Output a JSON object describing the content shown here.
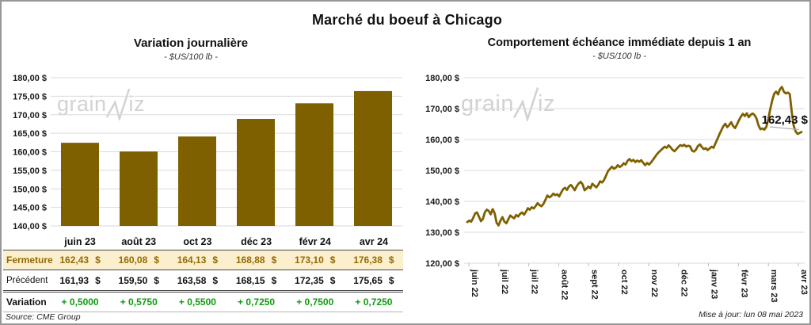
{
  "header": {
    "title": "Marché du boeuf à Chicago"
  },
  "left_chart": {
    "title": "Variation journalière",
    "subtitle": "- $US/100 lb -"
  },
  "right_chart": {
    "title": "Comportement échéance immédiate depuis 1 an",
    "subtitle": "- $US/100 lb -",
    "annotation_label": "162,43 $"
  },
  "watermark": {
    "prefix": "grain",
    "suffix": "iz"
  },
  "table": {
    "columns": [
      "juin 23",
      "août 23",
      "oct 23",
      "déc 23",
      "févr 24",
      "avr 24"
    ],
    "rows": [
      {
        "label": "Fermeture",
        "style": "fermeture",
        "unit": "$",
        "values": [
          "162,43",
          "160,08",
          "164,13",
          "168,88",
          "173,10",
          "176,38"
        ]
      },
      {
        "label": "Précédent",
        "style": "precedent",
        "unit": "$",
        "values": [
          "161,93",
          "159,50",
          "163,58",
          "168,15",
          "172,35",
          "175,65"
        ]
      },
      {
        "label": "Variation",
        "style": "variation",
        "unit": "",
        "values": [
          "+ 0,5000",
          "+ 0,5750",
          "+ 0,5500",
          "+ 0,7250",
          "+ 0,7500",
          "+ 0,7250"
        ]
      }
    ]
  },
  "footer": {
    "source": "Source: CME Group",
    "updated": "Mise à jour: lun 08 mai 2023"
  },
  "colors": {
    "gold": "#7f6000",
    "gold_text": "#946a00",
    "cream_bg": "#fbefcd",
    "green": "#0e9b0e",
    "grid": "#d9d9d9",
    "watermark": "#d2d2d2"
  },
  "chart_data": [
    {
      "type": "bar",
      "title": "Variation journalière",
      "subtitle": "- $US/100 lb -",
      "categories": [
        "juin 23",
        "août 23",
        "oct 23",
        "déc 23",
        "févr 24",
        "avr 24"
      ],
      "values": [
        162.43,
        160.08,
        164.13,
        168.88,
        173.1,
        176.38
      ],
      "ylabel": "$US/100 lb",
      "ylim": [
        140,
        180
      ],
      "ytick_step": 5,
      "grid": true,
      "bar_color": "#7f6000"
    },
    {
      "type": "line",
      "title": "Comportement échéance immédiate depuis 1 an",
      "subtitle": "- $US/100 lb -",
      "x_tick_labels": [
        "juin 22",
        "juil 22",
        "juil 22",
        "août 22",
        "sept 22",
        "oct 22",
        "nov 22",
        "déc 22",
        "janv 23",
        "févr 23",
        "mars 23",
        "avr 23"
      ],
      "ylabel": "$US/100 lb",
      "ylim": [
        120,
        180
      ],
      "ytick_step": 10,
      "grid": true,
      "line_color": "#7f6000",
      "annotation": {
        "text": "162,43 $",
        "value": 162.43,
        "at": "last-point"
      },
      "values": [
        133.3,
        133.8,
        133.4,
        134.6,
        136.1,
        136.4,
        135.0,
        133.6,
        134.3,
        136.5,
        137.3,
        136.9,
        135.8,
        137.5,
        136.2,
        133.1,
        132.2,
        133.8,
        134.9,
        133.4,
        132.9,
        134.2,
        135.4,
        134.9,
        134.5,
        135.6,
        135.1,
        135.9,
        136.4,
        135.7,
        136.6,
        137.8,
        137.3,
        138.1,
        137.7,
        138.5,
        139.4,
        138.8,
        138.4,
        139.2,
        140.5,
        141.9,
        141.3,
        141.7,
        142.5,
        142.0,
        142.3,
        141.6,
        142.8,
        143.9,
        144.4,
        143.7,
        144.8,
        145.3,
        144.5,
        143.6,
        144.9,
        145.8,
        146.3,
        145.5,
        143.6,
        144.1,
        144.8,
        144.2,
        145.7,
        145.1,
        144.5,
        145.3,
        146.5,
        146.1,
        146.9,
        148.3,
        149.8,
        150.5,
        151.2,
        150.6,
        150.9,
        151.7,
        151.1,
        151.5,
        152.3,
        151.9,
        153.1,
        153.7,
        153.0,
        153.4,
        152.7,
        153.2,
        152.8,
        153.3,
        152.5,
        151.7,
        152.4,
        151.9,
        152.6,
        153.4,
        154.3,
        155.2,
        155.9,
        156.5,
        157.1,
        157.7,
        157.3,
        158.1,
        157.5,
        156.7,
        156.2,
        156.9,
        157.6,
        158.2,
        157.9,
        158.3,
        157.7,
        158.0,
        157.8,
        156.4,
        156.1,
        156.7,
        157.9,
        158.4,
        157.6,
        156.9,
        157.2,
        156.6,
        157.1,
        157.7,
        157.3,
        158.8,
        160.2,
        161.7,
        163.0,
        164.3,
        165.1,
        164.0,
        164.7,
        165.6,
        164.4,
        163.7,
        164.9,
        166.2,
        167.4,
        168.3,
        167.6,
        168.5,
        167.2,
        168.0,
        168.4,
        167.9,
        166.8,
        164.6,
        163.3,
        163.6,
        163.2,
        164.1,
        166.5,
        169.8,
        172.6,
        174.8,
        175.5,
        174.6,
        176.3,
        177.0,
        175.4,
        174.9,
        175.2,
        174.7,
        168.9,
        164.5,
        162.6,
        161.8,
        162.1,
        162.43
      ]
    }
  ]
}
